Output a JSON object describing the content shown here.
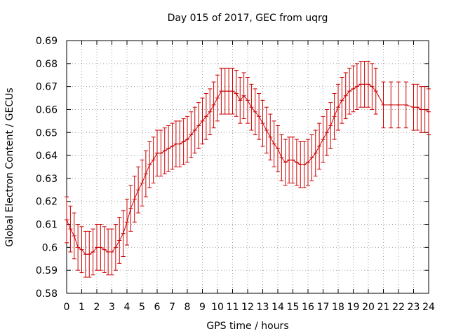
{
  "chart_data": {
    "type": "line",
    "title": "Day 015 of 2017, GEC from uqrg",
    "xlabel": "GPS time / hours",
    "ylabel": "Global Electron Content / GECUs",
    "xlim": [
      0,
      24
    ],
    "ylim": [
      0.58,
      0.69
    ],
    "x_ticks": [
      0,
      1,
      2,
      3,
      4,
      5,
      6,
      7,
      8,
      9,
      10,
      11,
      12,
      13,
      14,
      15,
      16,
      17,
      18,
      19,
      20,
      21,
      22,
      23,
      24
    ],
    "y_ticks": [
      0.58,
      0.59,
      0.6,
      0.61,
      0.62,
      0.63,
      0.64,
      0.65,
      0.66,
      0.67,
      0.68,
      0.69
    ],
    "y_tick_labels": [
      "0.58",
      "0.59",
      "0.6",
      "0.61",
      "0.62",
      "0.63",
      "0.64",
      "0.65",
      "0.66",
      "0.67",
      "0.68",
      "0.69"
    ],
    "grid": true,
    "color": "#cc0000",
    "error_bar": 0.01,
    "series": [
      {
        "x": [
          0,
          0.25,
          0.5,
          0.75,
          1,
          1.25,
          1.5,
          1.75,
          2,
          2.25,
          2.5,
          2.75,
          3,
          3.25,
          3.5,
          3.75,
          4,
          4.25,
          4.5,
          4.75,
          5,
          5.25,
          5.5,
          5.75,
          6,
          6.25,
          6.5,
          6.75,
          7,
          7.25,
          7.5,
          7.75,
          8,
          8.25,
          8.5,
          8.75,
          9,
          9.25,
          9.5,
          9.75,
          10,
          10.25,
          10.5,
          10.75,
          11,
          11.25,
          11.5,
          11.75,
          12,
          12.25,
          12.5,
          12.75,
          13,
          13.25,
          13.5,
          13.75,
          14,
          14.25,
          14.5,
          14.75,
          15,
          15.25,
          15.5,
          15.75,
          16,
          16.25,
          16.5,
          16.75,
          17,
          17.25,
          17.5,
          17.75,
          18,
          18.25,
          18.5,
          18.75,
          19,
          19.25,
          19.5,
          19.75,
          20,
          20.25,
          20.5,
          21,
          21.5,
          22,
          22.5,
          23,
          23.25,
          23.5,
          23.75,
          24
        ],
        "values": [
          0.612,
          0.608,
          0.605,
          0.6,
          0.599,
          0.597,
          0.597,
          0.598,
          0.6,
          0.6,
          0.599,
          0.598,
          0.598,
          0.6,
          0.603,
          0.606,
          0.611,
          0.617,
          0.621,
          0.625,
          0.628,
          0.632,
          0.636,
          0.638,
          0.641,
          0.641,
          0.642,
          0.643,
          0.644,
          0.645,
          0.645,
          0.646,
          0.647,
          0.649,
          0.651,
          0.653,
          0.655,
          0.657,
          0.659,
          0.662,
          0.665,
          0.668,
          0.668,
          0.668,
          0.668,
          0.667,
          0.664,
          0.666,
          0.664,
          0.661,
          0.659,
          0.657,
          0.654,
          0.651,
          0.648,
          0.645,
          0.643,
          0.639,
          0.637,
          0.638,
          0.638,
          0.637,
          0.636,
          0.636,
          0.637,
          0.639,
          0.641,
          0.644,
          0.647,
          0.65,
          0.653,
          0.657,
          0.661,
          0.664,
          0.666,
          0.668,
          0.669,
          0.67,
          0.671,
          0.671,
          0.671,
          0.67,
          0.668,
          0.662,
          0.662,
          0.662,
          0.662,
          0.661,
          0.661,
          0.66,
          0.66,
          0.659
        ]
      }
    ]
  }
}
